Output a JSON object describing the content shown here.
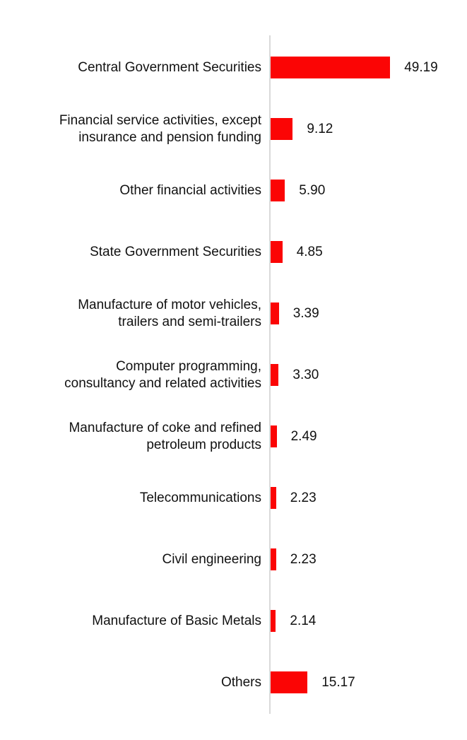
{
  "chart_data": {
    "type": "bar",
    "orientation": "horizontal",
    "title": "",
    "xlabel": "",
    "ylabel": "",
    "grid": false,
    "legend": "none",
    "xlim": [
      0,
      52
    ],
    "categories": [
      "Central Government Securities",
      "Financial service activities, except\ninsurance and pension funding",
      "Other financial activities",
      "State Government Securities",
      "Manufacture of motor vehicles,\ntrailers and semi-trailers",
      "Computer programming,\nconsultancy and related activities",
      "Manufacture of coke and refined\npetroleum products",
      "Telecommunications",
      "Civil engineering",
      "Manufacture of Basic Metals",
      "Others"
    ],
    "values": [
      49.19,
      9.12,
      5.9,
      4.85,
      3.39,
      3.3,
      2.49,
      2.23,
      2.23,
      2.14,
      15.17
    ],
    "value_labels": [
      "49.19",
      "9.12",
      "5.90",
      "4.85",
      "3.39",
      "3.30",
      "2.49",
      "2.23",
      "2.23",
      "2.14",
      "15.17"
    ],
    "bar_color": "#fb0505",
    "axis_line_color": "#d9d9d9",
    "text_color": "#111111"
  }
}
